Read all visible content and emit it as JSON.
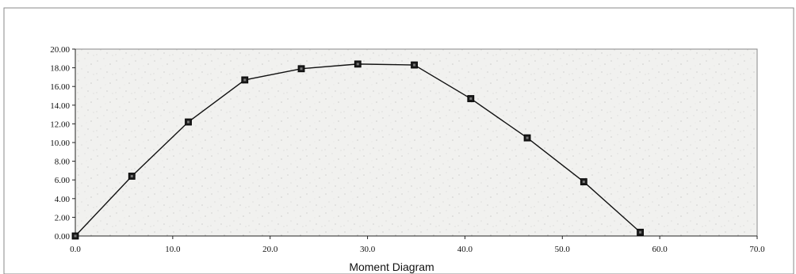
{
  "chart_data": {
    "type": "line",
    "title": "",
    "xlabel": "Moment Diagram",
    "ylabel": "",
    "xlim": [
      0,
      70
    ],
    "ylim": [
      0,
      20
    ],
    "x_ticks": [
      "0.0",
      "10.0",
      "20.0",
      "30.0",
      "40.0",
      "50.0",
      "60.0",
      "70.0"
    ],
    "y_ticks": [
      "0.00",
      "2.00",
      "4.00",
      "6.00",
      "8.00",
      "10.00",
      "12.00",
      "14.00",
      "16.00",
      "18.00",
      "20.00"
    ],
    "grid": false,
    "legend": "none",
    "marker": "square",
    "series": [
      {
        "x": [
          0.0,
          5.8,
          11.6,
          17.4,
          23.2,
          29.0,
          34.8,
          40.6,
          46.4,
          52.2,
          58.0
        ],
        "y": [
          0.0,
          6.4,
          12.2,
          16.7,
          17.9,
          18.4,
          18.3,
          14.7,
          10.5,
          5.8,
          0.4
        ]
      }
    ],
    "colors": {
      "line": "#111111",
      "marker": "#1a1a1a",
      "plot_bg": "#f3f3f1"
    }
  }
}
